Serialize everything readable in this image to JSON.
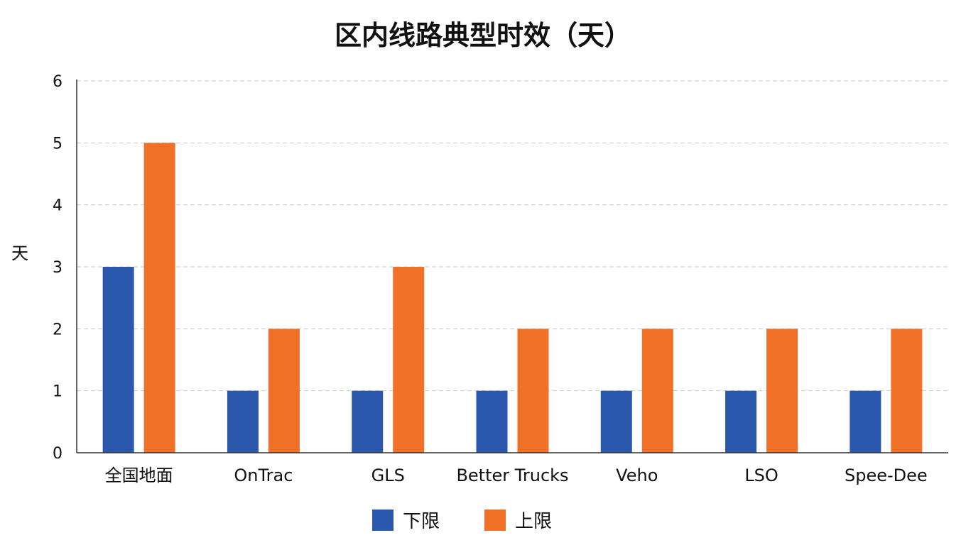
{
  "chart_data": {
    "type": "bar",
    "title": "区内线路典型时效（天）",
    "ylabel": "天",
    "xlabel": "",
    "ylim": [
      0,
      6
    ],
    "yticks": [
      0,
      1,
      2,
      3,
      4,
      5,
      6
    ],
    "grid": true,
    "legend_position": "bottom",
    "categories": [
      "全国地面",
      "OnTrac",
      "GLS",
      "Better Trucks",
      "Veho",
      "LSO",
      "Spee-Dee"
    ],
    "series": [
      {
        "name": "下限",
        "color": "#2b57ac",
        "values": [
          3,
          1,
          1,
          1,
          1,
          1,
          1
        ]
      },
      {
        "name": "上限",
        "color": "#f07027",
        "values": [
          5,
          2,
          3,
          2,
          2,
          2,
          2
        ]
      }
    ]
  }
}
